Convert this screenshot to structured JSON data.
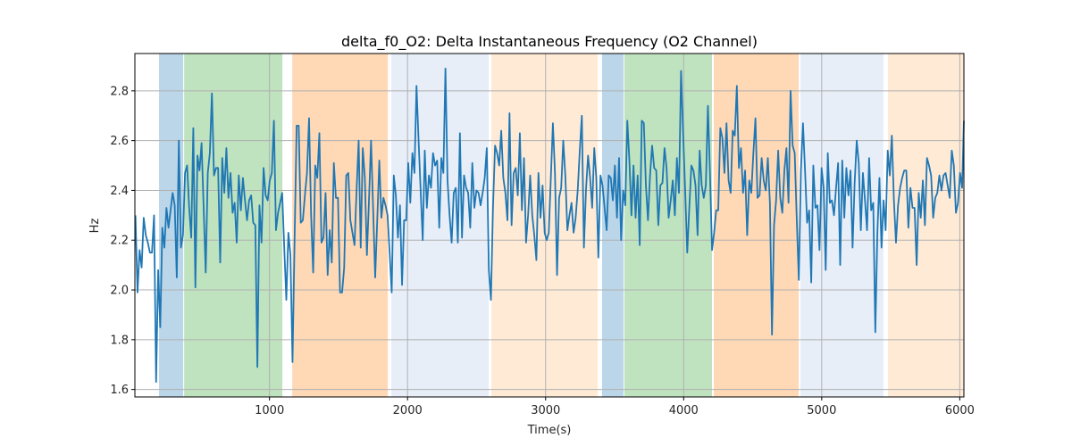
{
  "chart_data": {
    "type": "line",
    "title": "delta_f0_O2: Delta Instantaneous Frequency (O2 Channel)",
    "xlabel": "Time(s)",
    "ylabel": "Hz",
    "xlim": [
      25,
      6030
    ],
    "ylim": [
      1.57,
      2.95
    ],
    "grid": true,
    "x_ticks": [
      1000,
      2000,
      3000,
      4000,
      5000,
      6000
    ],
    "x_tick_labels": [
      "1000",
      "2000",
      "3000",
      "4000",
      "5000",
      "6000"
    ],
    "y_ticks": [
      1.6,
      1.8,
      2.0,
      2.2,
      2.4,
      2.6,
      2.8
    ],
    "y_tick_labels": [
      "1.6",
      "1.8",
      "2.0",
      "2.2",
      "2.4",
      "2.6",
      "2.8"
    ],
    "bands": [
      {
        "start": 200,
        "end": 375,
        "color": "#1f77b4",
        "opacity": 0.3
      },
      {
        "start": 382,
        "end": 1093,
        "color": "#2ca02c",
        "opacity": 0.3
      },
      {
        "start": 1165,
        "end": 1857,
        "color": "#ff7f0e",
        "opacity": 0.3
      },
      {
        "start": 1883,
        "end": 2588,
        "color": "#aec7e8",
        "opacity": 0.3
      },
      {
        "start": 2607,
        "end": 3377,
        "color": "#ffbb78",
        "opacity": 0.3
      },
      {
        "start": 3409,
        "end": 3565,
        "color": "#1f77b4",
        "opacity": 0.3
      },
      {
        "start": 3571,
        "end": 4205,
        "color": "#2ca02c",
        "opacity": 0.3
      },
      {
        "start": 4218,
        "end": 4833,
        "color": "#ff7f0e",
        "opacity": 0.3
      },
      {
        "start": 4846,
        "end": 5447,
        "color": "#aec7e8",
        "opacity": 0.3
      },
      {
        "start": 5480,
        "end": 6030,
        "color": "#ffbb78",
        "opacity": 0.3
      }
    ],
    "series": [
      {
        "name": "delta_f0_O2",
        "color": "#1f77b4",
        "t0": 29,
        "dt": 14.97,
        "values": [
          2.3,
          1.99,
          2.16,
          2.09,
          2.29,
          2.22,
          2.19,
          2.15,
          2.15,
          2.3,
          1.63,
          2.08,
          1.85,
          2.25,
          2.17,
          2.33,
          2.25,
          2.32,
          2.39,
          2.34,
          2.05,
          2.6,
          2.17,
          2.22,
          2.47,
          2.5,
          2.33,
          2.21,
          2.65,
          2.01,
          2.54,
          2.48,
          2.59,
          2.33,
          2.07,
          2.47,
          2.55,
          2.79,
          2.46,
          2.49,
          2.49,
          2.11,
          2.53,
          2.39,
          2.57,
          2.37,
          2.47,
          2.31,
          2.35,
          2.19,
          2.46,
          2.32,
          2.45,
          2.36,
          2.28,
          2.36,
          2.38,
          2.27,
          2.26,
          1.69,
          2.34,
          2.19,
          2.49,
          2.38,
          2.36,
          2.44,
          2.47,
          2.68,
          2.24,
          2.31,
          2.35,
          2.39,
          2.17,
          1.96,
          2.23,
          2.14,
          1.71,
          2.2,
          2.66,
          2.66,
          2.27,
          2.28,
          2.38,
          2.47,
          2.69,
          2.3,
          2.07,
          2.5,
          2.45,
          2.63,
          2.19,
          2.21,
          2.39,
          2.06,
          2.24,
          2.11,
          2.51,
          2.37,
          2.37,
          1.99,
          1.99,
          2.09,
          2.46,
          2.47,
          2.28,
          2.23,
          2.18,
          2.4,
          2.6,
          2.17,
          2.57,
          2.45,
          2.14,
          2.36,
          2.6,
          2.33,
          2.05,
          2.28,
          2.52,
          2.29,
          2.37,
          2.34,
          2.3,
          2.15,
          1.99,
          2.46,
          2.38,
          2.21,
          2.34,
          2.02,
          2.28,
          2.28,
          2.51,
          2.35,
          2.55,
          2.47,
          2.82,
          2.6,
          2.4,
          2.2,
          2.56,
          2.33,
          2.46,
          2.41,
          2.55,
          2.5,
          2.52,
          2.25,
          2.53,
          2.47,
          2.89,
          2.44,
          2.3,
          2.19,
          2.39,
          2.41,
          2.19,
          2.63,
          2.21,
          2.46,
          2.41,
          2.39,
          2.25,
          2.51,
          2.33,
          2.4,
          2.39,
          2.34,
          2.39,
          2.45,
          2.57,
          2.08,
          1.96,
          2.33,
          2.58,
          2.55,
          2.5,
          2.64,
          2.45,
          2.39,
          2.28,
          2.71,
          2.26,
          2.47,
          2.49,
          2.38,
          2.63,
          2.32,
          2.53,
          2.19,
          2.3,
          2.46,
          2.3,
          2.22,
          2.12,
          2.47,
          2.29,
          2.42,
          2.23,
          2.2,
          2.23,
          2.45,
          2.67,
          2.47,
          2.06,
          2.37,
          2.41,
          2.6,
          2.46,
          2.24,
          2.3,
          2.35,
          2.23,
          2.29,
          2.4,
          2.56,
          2.7,
          2.17,
          2.4,
          2.54,
          2.45,
          2.33,
          2.57,
          2.45,
          2.13,
          2.46,
          2.42,
          2.33,
          2.24,
          2.46,
          2.45,
          2.36,
          2.5,
          2.29,
          2.53,
          2.2,
          2.4,
          2.34,
          2.68,
          2.52,
          2.3,
          2.5,
          2.29,
          2.46,
          2.18,
          2.68,
          2.67,
          2.42,
          2.28,
          2.46,
          2.58,
          2.49,
          2.48,
          2.26,
          2.42,
          2.43,
          2.57,
          2.49,
          2.29,
          2.36,
          2.44,
          2.3,
          2.53,
          2.39,
          2.88,
          2.63,
          2.4,
          2.15,
          2.33,
          2.5,
          2.48,
          2.42,
          2.22,
          2.56,
          2.42,
          2.37,
          2.42,
          2.74,
          2.47,
          2.16,
          2.23,
          2.32,
          2.32,
          2.65,
          2.61,
          2.47,
          2.67,
          2.44,
          2.39,
          2.64,
          2.62,
          2.82,
          2.49,
          2.57,
          2.39,
          2.48,
          2.22,
          2.44,
          2.39,
          2.55,
          2.69,
          2.37,
          2.38,
          2.53,
          2.44,
          2.4,
          2.53,
          2.35,
          1.82,
          2.26,
          2.36,
          2.56,
          2.37,
          2.31,
          2.48,
          2.57,
          2.35,
          2.8,
          2.58,
          2.55,
          2.28,
          2.04,
          2.48,
          2.67,
          2.48,
          2.27,
          2.32,
          2.03,
          2.5,
          2.33,
          2.34,
          2.16,
          2.49,
          2.41,
          2.08,
          2.55,
          2.35,
          2.36,
          2.3,
          2.41,
          2.51,
          2.1,
          2.52,
          2.29,
          2.49,
          2.38,
          2.48,
          2.17,
          2.43,
          2.6,
          2.51,
          2.24,
          2.47,
          2.36,
          2.24,
          2.53,
          2.32,
          2.35,
          1.83,
          2.23,
          2.45,
          2.17,
          2.36,
          2.24,
          2.56,
          2.46,
          2.62,
          2.36,
          2.19,
          2.34,
          2.41,
          2.45,
          2.48,
          2.48,
          2.25,
          2.41,
          2.33,
          2.33,
          2.1,
          2.39,
          2.29,
          2.44,
          2.26,
          2.53,
          2.5,
          2.46,
          2.29,
          2.37,
          2.39,
          2.46,
          2.4,
          2.46,
          2.47,
          2.42,
          2.37,
          2.56,
          2.5,
          2.31,
          2.35,
          2.47,
          2.41,
          2.68
        ]
      }
    ]
  }
}
